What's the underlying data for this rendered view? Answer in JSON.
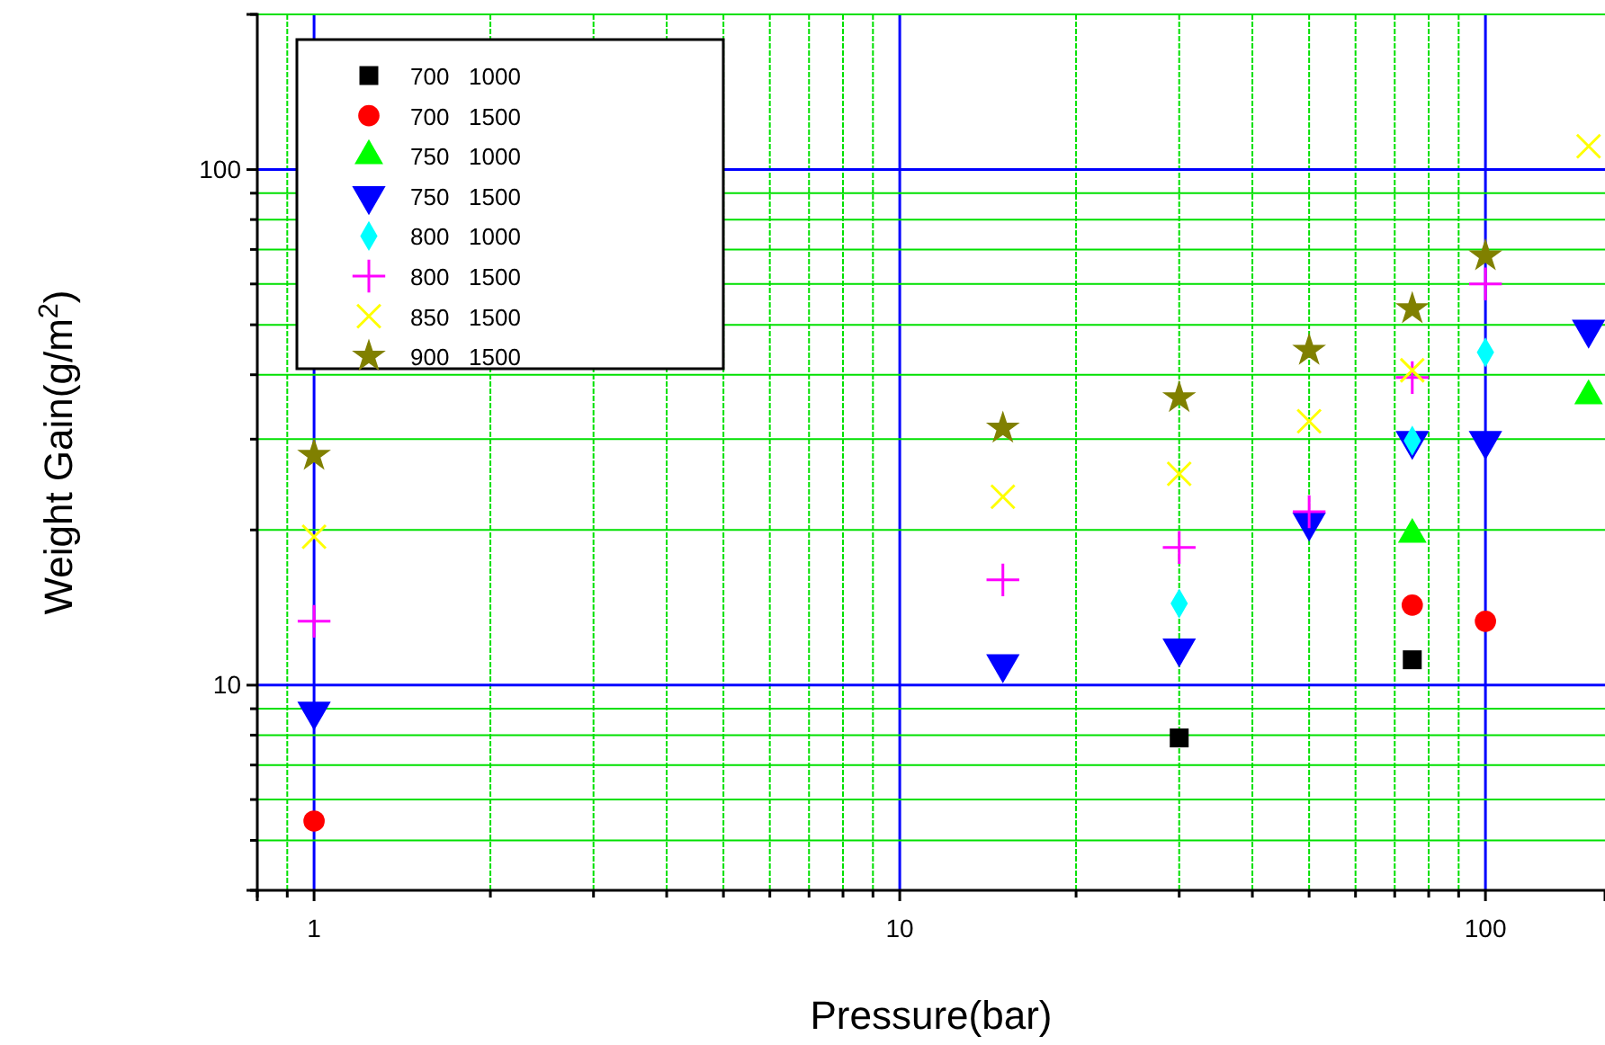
{
  "chart_data": {
    "type": "scatter",
    "xlabel": "Pressure(bar)",
    "ylabel": "Weight Gain(g/m$^{2}$)",
    "log": "xy",
    "grid": true,
    "legend": "top left",
    "xlim": [
      0.8,
      160
    ],
    "ylim": [
      4,
      200
    ],
    "xticks": [
      {
        "value": 0.8,
        "label": null
      },
      {
        "value": 0.9,
        "label": null
      },
      1,
      {
        "value": 2,
        "label": null
      },
      {
        "value": 3,
        "label": null
      },
      {
        "value": 4,
        "label": null
      },
      {
        "value": 5,
        "label": null
      },
      {
        "value": 6,
        "label": null
      },
      {
        "value": 7,
        "label": null
      },
      {
        "value": 8,
        "label": null
      },
      {
        "value": 9,
        "label": null
      },
      10,
      {
        "value": 20,
        "label": null
      },
      {
        "value": 30,
        "label": null
      },
      {
        "value": 40,
        "label": null
      },
      {
        "value": 50,
        "label": null
      },
      {
        "value": 60,
        "label": null
      },
      {
        "value": 70,
        "label": null
      },
      {
        "value": 80,
        "label": null
      },
      {
        "value": 90,
        "label": null
      },
      100
    ],
    "yticks": [
      {
        "value": 4,
        "label": null
      },
      {
        "value": 5,
        "label": null
      },
      {
        "value": 6,
        "label": null
      },
      {
        "value": 7,
        "label": null
      },
      {
        "value": 8,
        "label": null
      },
      {
        "value": 9,
        "label": null
      },
      10,
      {
        "value": 20,
        "label": null
      },
      {
        "value": 30,
        "label": null
      },
      {
        "value": 40,
        "label": null
      },
      {
        "value": 50,
        "label": null
      },
      {
        "value": 60,
        "label": null
      },
      {
        "value": 70,
        "label": null
      },
      {
        "value": 80,
        "label": null
      },
      {
        "value": 90,
        "label": null
      },
      100,
      {
        "value": 200,
        "label": null
      }
    ],
    "series": [
      {
        "name": "700   1000",
        "color": "#000000",
        "marker": "square",
        "x": [
          30,
          75
        ],
        "values": [
          7.9,
          11.2
        ]
      },
      {
        "name": "700   1500",
        "color": "#ff0000",
        "marker": "circle",
        "x": [
          1,
          75,
          100
        ],
        "values": [
          5.45,
          14.3,
          13.3
        ]
      },
      {
        "name": "750   1000",
        "color": "#00ff00",
        "marker": "triangle",
        "x": [
          75,
          150
        ],
        "values": [
          19.6,
          36.4
        ]
      },
      {
        "name": "750   1500",
        "color": "#0000ff",
        "marker": "triangle-down",
        "x": [
          1,
          15,
          30,
          50,
          75,
          100,
          150
        ],
        "values": [
          8.9,
          11,
          11.8,
          20.7,
          29.8,
          29.8,
          49
        ]
      },
      {
        "name": "800   1000",
        "color": "#00ffff",
        "marker": "diamond",
        "x": [
          30,
          75,
          100
        ],
        "values": [
          14.4,
          29.8,
          44.2
        ]
      },
      {
        "name": "800   1500",
        "color": "#ff00ff",
        "marker": "plus",
        "x": [
          1,
          15,
          30,
          50,
          75,
          100
        ],
        "values": [
          13.3,
          16,
          18.5,
          21.7,
          39.5,
          60
        ]
      },
      {
        "name": "850   1500",
        "color": "#ffff00",
        "marker": "cross",
        "x": [
          1,
          15,
          30,
          50,
          75,
          150
        ],
        "values": [
          19.4,
          23.2,
          25.7,
          32.5,
          40.8,
          111
        ]
      },
      {
        "name": "900   1500",
        "color": "#808000",
        "marker": "star",
        "x": [
          1,
          15,
          30,
          50,
          75,
          100
        ],
        "values": [
          27.9,
          31.5,
          36.1,
          44.6,
          53.7,
          68
        ]
      }
    ]
  }
}
